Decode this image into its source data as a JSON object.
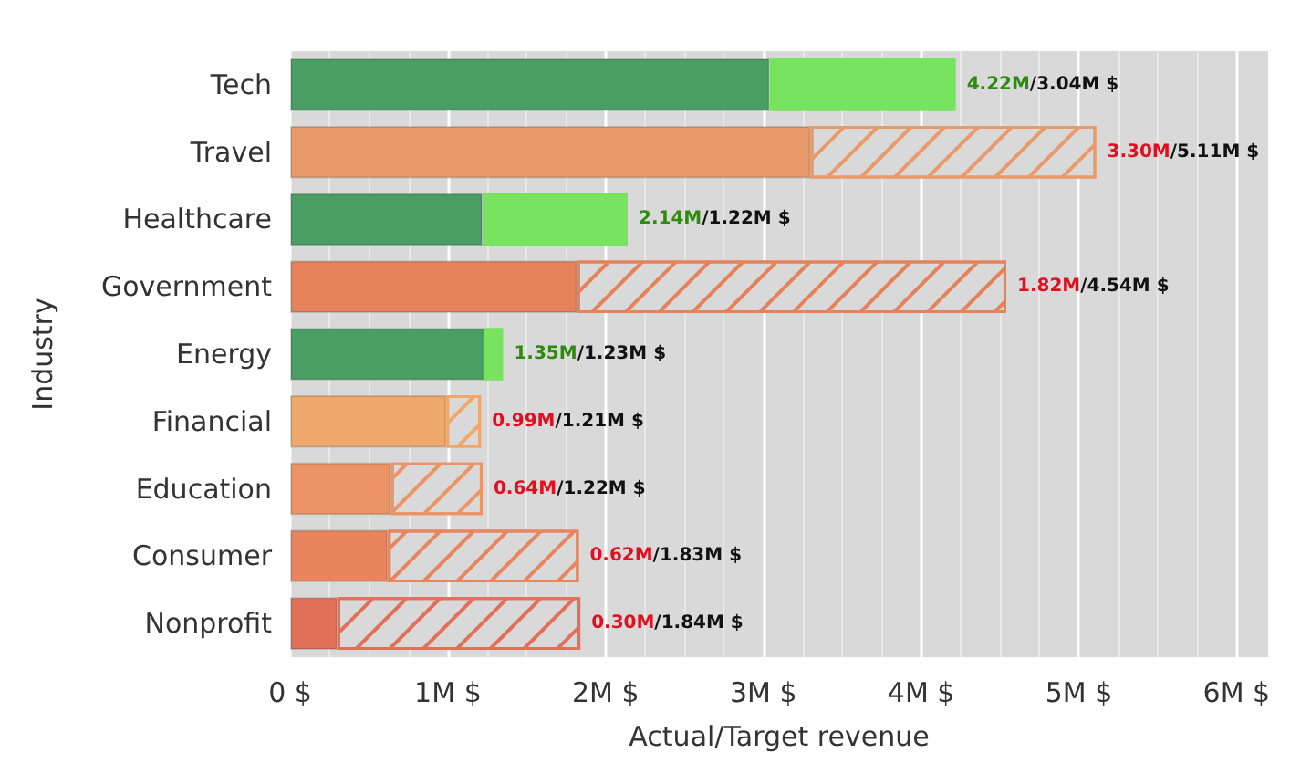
{
  "chart_data": {
    "type": "bar",
    "orientation": "horizontal",
    "stacked": true,
    "categories": [
      "Tech",
      "Travel",
      "Healthcare",
      "Government",
      "Energy",
      "Financial",
      "Education",
      "Consumer",
      "Nonprofit"
    ],
    "series": [
      {
        "colors": [
          "#4a9e64",
          "#e89a6a",
          "#4a9e64",
          "#e5825a",
          "#4a9e64",
          "#efa86c",
          "#ec9466",
          "#e8845e",
          "#e07058"
        ],
        "values": [
          3.04,
          3.3,
          1.22,
          1.82,
          1.23,
          0.99,
          0.64,
          0.62,
          0.3
        ]
      },
      {
        "color": "#77e35f",
        "values": [
          1.18,
          null,
          0.92,
          null,
          0.12,
          null,
          null,
          null,
          null
        ]
      },
      {
        "colors": [
          null,
          "#e89a6a",
          null,
          "#e5825a",
          null,
          "#efa86c",
          "#ec9466",
          "#e8845e",
          "#e07058"
        ],
        "values": [
          null,
          1.81,
          null,
          2.72,
          null,
          0.22,
          0.58,
          1.21,
          1.54
        ]
      }
    ],
    "value_labels": [
      "4.22M/3.04M $",
      "3.30M/5.11M $",
      "2.14M/1.22M $",
      "1.82M/4.54M $",
      "1.35M/1.23M $",
      "0.99M/1.21M $",
      "0.64M/1.22M $",
      "0.62M/1.83M $",
      "0.30M/1.84M $"
    ],
    "xlabel": "Actual/Target revenue",
    "ylabel": "Industry",
    "xlim": [
      0,
      6.2
    ],
    "xticks": [
      {
        "value": 0,
        "label": "0 $"
      },
      {
        "value": 1,
        "label": "1M $"
      },
      {
        "value": 2,
        "label": "2M $"
      },
      {
        "value": 3,
        "label": "3M $"
      },
      {
        "value": 4,
        "label": "4M $"
      },
      {
        "value": 5,
        "label": "5M $"
      },
      {
        "value": 6,
        "label": "6M $"
      }
    ],
    "grid": "x"
  }
}
